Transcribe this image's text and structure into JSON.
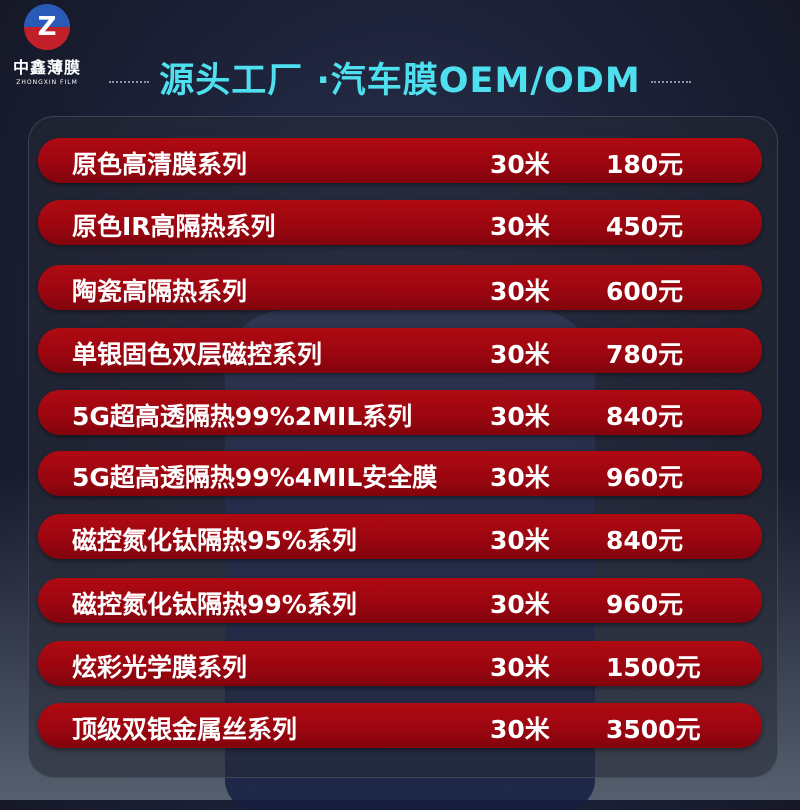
{
  "brand": {
    "logo_letter": "Z",
    "name_cn": "中鑫薄膜",
    "name_en": "ZHONGXIN FILM"
  },
  "title": "源头工厂 ·汽车膜OEM/ODM",
  "colors": {
    "row": "#a0060f",
    "title": "#4fe0ef"
  },
  "products": [
    {
      "name": "原色高清膜系列",
      "length": "30米",
      "price": "180元"
    },
    {
      "name": "原色IR高隔热系列",
      "length": "30米",
      "price": "450元"
    },
    {
      "name": "陶瓷高隔热系列",
      "length": "30米",
      "price": "600元"
    },
    {
      "name": "单银固色双层磁控系列",
      "length": "30米",
      "price": "780元"
    },
    {
      "name": "5G超高透隔热99%2MIL系列",
      "length": "30米",
      "price": "840元"
    },
    {
      "name": "5G超高透隔热99%4MIL安全膜",
      "length": "30米",
      "price": "960元"
    },
    {
      "name": "磁控氮化钛隔热95%系列",
      "length": "30米",
      "price": "840元"
    },
    {
      "name": "磁控氮化钛隔热99%系列",
      "length": "30米",
      "price": "960元"
    },
    {
      "name": "炫彩光学膜系列",
      "length": "30米",
      "price": "1500元"
    },
    {
      "name": "顶级双银金属丝系列",
      "length": "30米",
      "price": "3500元"
    }
  ]
}
